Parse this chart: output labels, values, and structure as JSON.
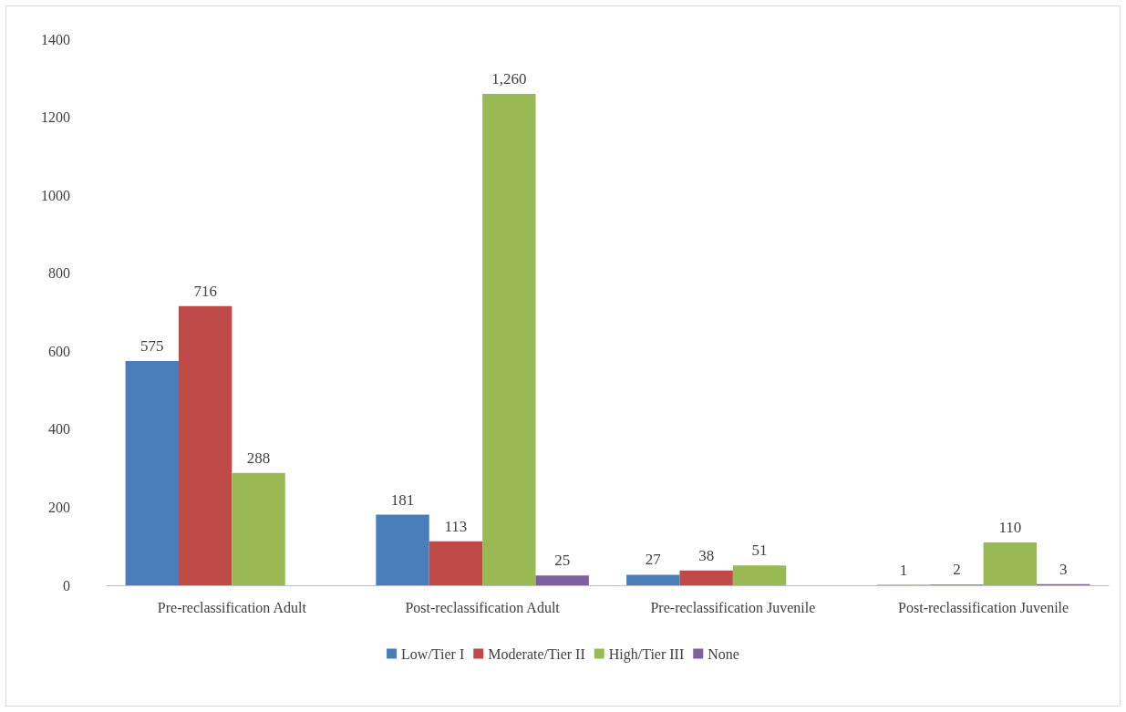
{
  "chart_data": {
    "type": "bar",
    "categories": [
      "Pre-reclassification Adult",
      "Post-reclassification Adult",
      "Pre-reclassification Juvenile",
      "Post-reclassification Juvenile"
    ],
    "series": [
      {
        "name": "Low/Tier I",
        "color": "#4a7ebb",
        "values": [
          575,
          181,
          27,
          1
        ],
        "value_labels": [
          "575",
          "181",
          "27",
          "1"
        ]
      },
      {
        "name": "Moderate/Tier II",
        "color": "#be4b48",
        "values": [
          716,
          113,
          38,
          2
        ],
        "value_labels": [
          "716",
          "113",
          "38",
          "2"
        ]
      },
      {
        "name": "High/Tier III",
        "color": "#98b954",
        "values": [
          288,
          1260,
          51,
          110
        ],
        "value_labels": [
          "288",
          "1,260",
          "51",
          "110"
        ]
      },
      {
        "name": "None",
        "color": "#7d60a0",
        "values": [
          null,
          25,
          null,
          3
        ],
        "value_labels": [
          null,
          "25",
          null,
          "3"
        ]
      }
    ],
    "ylim": [
      0,
      1400
    ],
    "yticks": [
      0,
      200,
      400,
      600,
      800,
      1000,
      1200,
      1400
    ],
    "grid": false,
    "legend": "bottom"
  }
}
